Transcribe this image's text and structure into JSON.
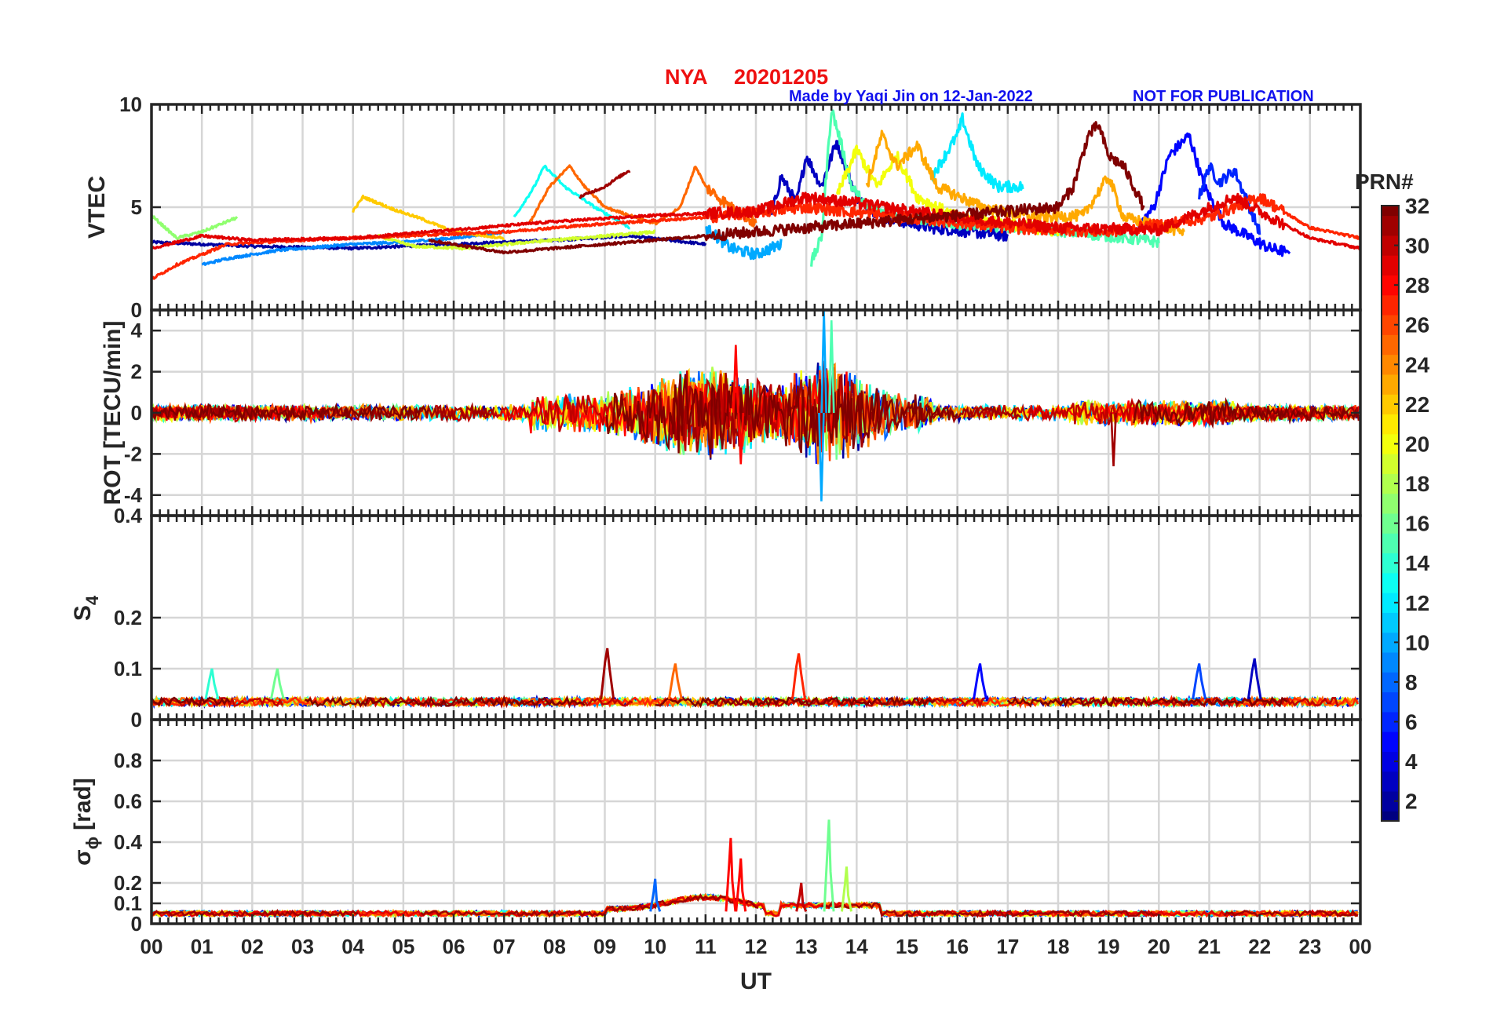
{
  "header": {
    "title_station": "NYA",
    "title_date": "20201205",
    "credit": "Made by Yaqi Jin on 12-Jan-2022",
    "notice": "NOT FOR PUBLICATION",
    "title_color": "#ee1111",
    "credit_color": "#1111ee"
  },
  "chart_data": [
    {
      "type": "line",
      "panel": "vtec",
      "ylabel": "VTEC",
      "ylim": [
        0,
        10
      ],
      "yticks": [
        0,
        5,
        10
      ],
      "ytick_labels": [
        "0",
        "5",
        "10"
      ],
      "grid": true,
      "series_summary": "32 GPS PRN traces; baseline 3-4 TECU 00-08 UT, rising to peaks 7-9.5 TECU between 11 and 22 UT",
      "series": [
        {
          "prn": 2,
          "points": [
            [
              0,
              3.3
            ],
            [
              2,
              3.1
            ],
            [
              4,
              3.0
            ],
            [
              6,
              3.2
            ],
            [
              8,
              3.4
            ],
            [
              9.5,
              3.6
            ],
            [
              11,
              3.2
            ]
          ]
        },
        {
          "prn": 3,
          "points": [
            [
              12.3,
              4.5
            ],
            [
              12.5,
              6.5
            ],
            [
              12.8,
              5.2
            ],
            [
              13,
              7.5
            ],
            [
              13.3,
              6
            ],
            [
              13.6,
              8.2
            ],
            [
              14,
              5.5
            ],
            [
              14.5,
              4.5
            ],
            [
              15.5,
              4.0
            ],
            [
              17,
              3.6
            ]
          ]
        },
        {
          "prn": 5,
          "points": [
            [
              19.5,
              3.8
            ],
            [
              19.9,
              5.0
            ],
            [
              20.2,
              7.5
            ],
            [
              20.6,
              8.5
            ],
            [
              20.9,
              6.0
            ],
            [
              21.3,
              4.2
            ],
            [
              22.2,
              3.0
            ],
            [
              22.6,
              2.8
            ]
          ]
        },
        {
          "prn": 6,
          "points": [
            [
              20.8,
              5.5
            ],
            [
              21.0,
              7.0
            ],
            [
              21.2,
              6.2
            ],
            [
              21.5,
              6.8
            ],
            [
              21.8,
              5.0
            ],
            [
              22.0,
              3.8
            ]
          ]
        },
        {
          "prn": 9,
          "points": [
            [
              1.0,
              2.2
            ],
            [
              1.5,
              2.5
            ],
            [
              2.5,
              2.9
            ],
            [
              4,
              3.2
            ],
            [
              5,
              3.3
            ],
            [
              6,
              3.5
            ],
            [
              7,
              3.8
            ]
          ]
        },
        {
          "prn": 10,
          "points": [
            [
              11,
              4.0
            ],
            [
              11.5,
              3.0
            ],
            [
              12,
              2.7
            ],
            [
              12.5,
              3.2
            ]
          ]
        },
        {
          "prn": 12,
          "points": [
            [
              15.5,
              6.5
            ],
            [
              16,
              8.5
            ],
            [
              16.1,
              9.3
            ],
            [
              16.4,
              7.0
            ],
            [
              16.8,
              6.0
            ],
            [
              17.3,
              6.0
            ]
          ]
        },
        {
          "prn": 13,
          "points": [
            [
              7.2,
              4.5
            ],
            [
              7.6,
              6.0
            ],
            [
              7.8,
              7.0
            ],
            [
              8.2,
              6.0
            ],
            [
              8.8,
              5.0
            ],
            [
              9.5,
              4.0
            ]
          ]
        },
        {
          "prn": 15,
          "points": [
            [
              13.1,
              2.3
            ],
            [
              13.3,
              3.5
            ],
            [
              13.5,
              9.8
            ],
            [
              13.7,
              8.0
            ],
            [
              13.9,
              6.0
            ],
            [
              14.2,
              5.0
            ],
            [
              15,
              4.5
            ],
            [
              16,
              4.2
            ],
            [
              17.5,
              4.0
            ],
            [
              19,
              3.6
            ],
            [
              20,
              3.3
            ]
          ]
        },
        {
          "prn": 17,
          "points": [
            [
              0,
              4.6
            ],
            [
              0.5,
              3.5
            ],
            [
              1.0,
              3.8
            ],
            [
              1.7,
              4.5
            ]
          ]
        },
        {
          "prn": 19,
          "points": [
            [
              4.5,
              3.6
            ],
            [
              5.2,
              3.1
            ],
            [
              6.2,
              3.0
            ],
            [
              7.5,
              3.3
            ],
            [
              9,
              3.6
            ],
            [
              10,
              3.8
            ]
          ]
        },
        {
          "prn": 20,
          "points": [
            [
              13.6,
              5.5
            ],
            [
              14.0,
              7.8
            ],
            [
              14.4,
              6.0
            ],
            [
              14.8,
              7.5
            ],
            [
              15.2,
              5.5
            ],
            [
              16,
              4.5
            ],
            [
              17,
              4.2
            ],
            [
              18,
              3.8
            ]
          ]
        },
        {
          "prn": 22,
          "points": [
            [
              4.0,
              4.8
            ],
            [
              4.2,
              5.5
            ],
            [
              4.8,
              4.9
            ],
            [
              5.4,
              4.4
            ],
            [
              6.0,
              3.8
            ],
            [
              7.0,
              3.5
            ]
          ]
        },
        {
          "prn": 23,
          "points": [
            [
              14.2,
              6.0
            ],
            [
              14.5,
              8.5
            ],
            [
              14.8,
              7.0
            ],
            [
              15.2,
              8.0
            ],
            [
              15.6,
              6.0
            ],
            [
              16.5,
              5.0
            ],
            [
              17.5,
              4.5
            ],
            [
              18.5,
              4.6
            ],
            [
              19.0,
              6.5
            ],
            [
              19.3,
              4.5
            ],
            [
              20.5,
              3.8
            ]
          ]
        },
        {
          "prn": 25,
          "points": [
            [
              7.5,
              4.2
            ],
            [
              7.9,
              6.0
            ],
            [
              8.3,
              7.0
            ],
            [
              8.6,
              6.0
            ],
            [
              9,
              5.0
            ],
            [
              10,
              4.2
            ],
            [
              10.5,
              5.0
            ],
            [
              10.8,
              7.0
            ],
            [
              11.0,
              6.0
            ],
            [
              11.5,
              5.0
            ],
            [
              12,
              4.2
            ]
          ]
        },
        {
          "prn": 27,
          "points": [
            [
              0,
              1.5
            ],
            [
              0.5,
              2.2
            ],
            [
              1.5,
              3.2
            ],
            [
              3,
              3.4
            ],
            [
              5,
              3.6
            ],
            [
              7,
              3.8
            ],
            [
              9,
              4.2
            ],
            [
              11,
              4.5
            ],
            [
              13,
              5.0
            ],
            [
              15,
              4.5
            ],
            [
              17,
              4.0
            ],
            [
              19,
              3.8
            ],
            [
              21,
              4.5
            ],
            [
              22,
              5.5
            ],
            [
              23,
              4.0
            ],
            [
              24,
              3.5
            ]
          ]
        },
        {
          "prn": 29,
          "points": [
            [
              0,
              3.0
            ],
            [
              1,
              3.6
            ],
            [
              2,
              3.4
            ],
            [
              4,
              3.5
            ],
            [
              6,
              3.9
            ],
            [
              8,
              4.3
            ],
            [
              10,
              4.6
            ],
            [
              12,
              4.8
            ],
            [
              13,
              5.5
            ],
            [
              14,
              5.2
            ],
            [
              16,
              4.5
            ],
            [
              18,
              4.0
            ],
            [
              20,
              3.9
            ],
            [
              21.5,
              5.5
            ],
            [
              22,
              4.8
            ],
            [
              23,
              3.5
            ],
            [
              24,
              3.0
            ]
          ]
        },
        {
          "prn": 31,
          "points": [
            [
              8.5,
              5.5
            ],
            [
              9.0,
              6.0
            ],
            [
              9.3,
              6.5
            ],
            [
              9.5,
              6.8
            ]
          ]
        },
        {
          "prn": 32,
          "points": [
            [
              5.5,
              3.4
            ],
            [
              6,
              3.2
            ],
            [
              6.5,
              3.0
            ],
            [
              7,
              2.8
            ],
            [
              18.0,
              5.0
            ],
            [
              18.3,
              6.0
            ],
            [
              18.6,
              8.5
            ],
            [
              18.8,
              9.0
            ],
            [
              19.0,
              7.5
            ],
            [
              19.3,
              7.0
            ],
            [
              19.6,
              5.5
            ],
            [
              19.7,
              5.0
            ]
          ]
        }
      ]
    },
    {
      "type": "line",
      "panel": "rot",
      "ylabel": "ROT [TECU/min]",
      "ylim": [
        -5,
        5
      ],
      "yticks": [
        -4,
        -2,
        0,
        2,
        4
      ],
      "ytick_labels": [
        "-4",
        "-2",
        "0",
        "2",
        "4"
      ],
      "grid": true,
      "series_summary": "Rate of TEC; ~±0.5 baseline, bursts up to ±3 at 10-12 UT and extremes near 13.3 UT (+5 / -4.3), spike -2.6 at 19 UT",
      "extremes": [
        {
          "x": 11.6,
          "value": 3.3,
          "prn": 28
        },
        {
          "x": 13.35,
          "value": 5.0,
          "prn": 10
        },
        {
          "x": 13.3,
          "value": -4.3,
          "prn": 10
        },
        {
          "x": 13.5,
          "value": 4.5,
          "prn": 15
        },
        {
          "x": 19.1,
          "value": -2.6,
          "prn": 31
        },
        {
          "x": 11.7,
          "value": -2.5,
          "prn": 28
        }
      ]
    },
    {
      "type": "line",
      "panel": "s4",
      "ylabel": "S",
      "ylabel_subscript": "4",
      "ylim": [
        0,
        0.4
      ],
      "yticks": [
        0,
        0.1,
        0.2,
        0.4
      ],
      "ytick_labels": [
        "0",
        "0.1",
        "0.2",
        "0.4"
      ],
      "grid": true,
      "series_summary": "Amplitude scintillation index; baseline 0.03-0.05 with peaks near 0.14 at 9 UT and 0.13 at 12.8 UT",
      "peaks": [
        {
          "x": 1.2,
          "value": 0.1,
          "prn": 14
        },
        {
          "x": 2.5,
          "value": 0.1,
          "prn": 16
        },
        {
          "x": 9.05,
          "value": 0.14,
          "prn": 31
        },
        {
          "x": 10.4,
          "value": 0.11,
          "prn": 25
        },
        {
          "x": 12.85,
          "value": 0.13,
          "prn": 27
        },
        {
          "x": 16.45,
          "value": 0.11,
          "prn": 5
        },
        {
          "x": 20.8,
          "value": 0.11,
          "prn": 7
        },
        {
          "x": 21.9,
          "value": 0.12,
          "prn": 3
        }
      ]
    },
    {
      "type": "line",
      "panel": "sigma_phi",
      "ylabel": "σ",
      "ylabel_subscript": "ϕ",
      "ylabel_unit": "[rad]",
      "ylim": [
        0,
        1
      ],
      "yticks": [
        0,
        0.1,
        0.2,
        0.4,
        0.6,
        0.8
      ],
      "ytick_labels": [
        "0",
        "0.1",
        "0.2",
        "0.4",
        "0.6",
        "0.8"
      ],
      "grid": true,
      "series_summary": "Phase scintillation index; baseline ~0.05, enhancement 0.1-0.4 at 9-12 UT and 0.5 at 13.5 UT",
      "peaks": [
        {
          "x": 11.5,
          "value": 0.42,
          "prn": 28
        },
        {
          "x": 11.7,
          "value": 0.32,
          "prn": 28
        },
        {
          "x": 13.45,
          "value": 0.51,
          "prn": 16
        },
        {
          "x": 13.8,
          "value": 0.28,
          "prn": 18
        },
        {
          "x": 10.0,
          "value": 0.22,
          "prn": 8
        },
        {
          "x": 12.9,
          "value": 0.2,
          "prn": 30
        }
      ]
    }
  ],
  "x_axis": {
    "label": "UT",
    "xlim": [
      0,
      24
    ],
    "tick_labels": [
      "00",
      "01",
      "02",
      "03",
      "04",
      "05",
      "06",
      "07",
      "08",
      "09",
      "10",
      "11",
      "12",
      "13",
      "14",
      "15",
      "16",
      "17",
      "18",
      "19",
      "20",
      "21",
      "22",
      "23",
      "00"
    ]
  },
  "colorbar": {
    "title": "PRN#",
    "range": [
      1,
      32
    ],
    "ticks": [
      2,
      4,
      6,
      8,
      10,
      12,
      14,
      16,
      18,
      20,
      22,
      24,
      26,
      28,
      30,
      32
    ],
    "tick_labels": [
      "2",
      "4",
      "6",
      "8",
      "10",
      "12",
      "14",
      "16",
      "18",
      "20",
      "22",
      "24",
      "26",
      "28",
      "30",
      "32"
    ],
    "colormap": "jet"
  }
}
